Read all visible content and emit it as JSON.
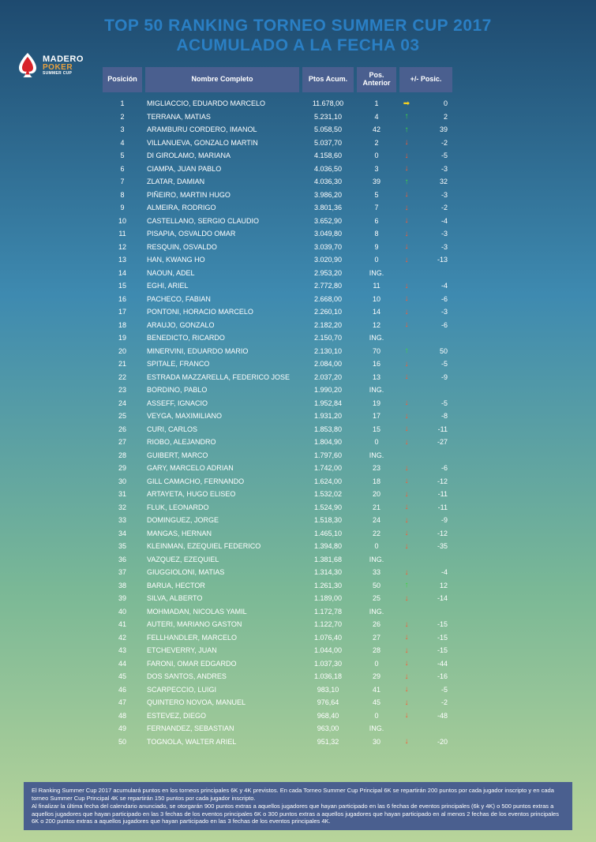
{
  "title_line1": "TOP 50 RANKING TORNEO SUMMER CUP 2017",
  "title_line2": "ACUMULADO A LA FECHA 03",
  "logo": {
    "madero": "MADERO",
    "poker": "POKER",
    "summer": "SUMMER CUP",
    "spade_color": "#d8232a",
    "spade_body": "#ffffff"
  },
  "headers": {
    "posicion": "Posición",
    "nombre": "Nombre Completo",
    "ptos": "Ptos Acum.",
    "anterior": "Pos. Anterior",
    "delta": "+/- Posic."
  },
  "colors": {
    "header_bg": "#4a5f8f",
    "text": "#ffffff",
    "title": "#2a7fc4",
    "up": "#3fd83f",
    "down": "#ff5830",
    "same": "#f5d020"
  },
  "rows": [
    {
      "pos": "1",
      "name": "MIGLIACCIO, EDUARDO MARCELO",
      "pts": "11.678,00",
      "prev": "1",
      "dir": "same",
      "delta": "0"
    },
    {
      "pos": "2",
      "name": "TERRANA, MATIAS",
      "pts": "5.231,10",
      "prev": "4",
      "dir": "up",
      "delta": "2"
    },
    {
      "pos": "3",
      "name": "ARAMBURU CORDERO, IMANOL",
      "pts": "5.058,50",
      "prev": "42",
      "dir": "up",
      "delta": "39"
    },
    {
      "pos": "4",
      "name": "VILLANUEVA, GONZALO MARTIN",
      "pts": "5.037,70",
      "prev": "2",
      "dir": "down",
      "delta": "-2"
    },
    {
      "pos": "5",
      "name": "DI GIROLAMO, MARIANA",
      "pts": "4.158,60",
      "prev": "0",
      "dir": "down",
      "delta": "-5"
    },
    {
      "pos": "6",
      "name": "CIAMPA, JUAN PABLO",
      "pts": "4.036,50",
      "prev": "3",
      "dir": "down",
      "delta": "-3"
    },
    {
      "pos": "7",
      "name": "ZLATAR, DAMIAN",
      "pts": "4.036,30",
      "prev": "39",
      "dir": "up",
      "delta": "32"
    },
    {
      "pos": "8",
      "name": "PIÑEIRO, MARTIN HUGO",
      "pts": "3.986,20",
      "prev": "5",
      "dir": "down",
      "delta": "-3"
    },
    {
      "pos": "9",
      "name": "ALMEIRA, RODRIGO",
      "pts": "3.801,36",
      "prev": "7",
      "dir": "down",
      "delta": "-2"
    },
    {
      "pos": "10",
      "name": "CASTELLANO, SERGIO CLAUDIO",
      "pts": "3.652,90",
      "prev": "6",
      "dir": "down",
      "delta": "-4"
    },
    {
      "pos": "11",
      "name": "PISAPIA, OSVALDO OMAR",
      "pts": "3.049,80",
      "prev": "8",
      "dir": "down",
      "delta": "-3"
    },
    {
      "pos": "12",
      "name": "RESQUIN, OSVALDO",
      "pts": "3.039,70",
      "prev": "9",
      "dir": "down",
      "delta": "-3"
    },
    {
      "pos": "13",
      "name": "HAN, KWANG HO",
      "pts": "3.020,90",
      "prev": "0",
      "dir": "down",
      "delta": "-13"
    },
    {
      "pos": "14",
      "name": "NAOUN, ADEL",
      "pts": "2.953,20",
      "prev": "ING.",
      "dir": "",
      "delta": ""
    },
    {
      "pos": "15",
      "name": "EGHI, ARIEL",
      "pts": "2.772,80",
      "prev": "11",
      "dir": "down",
      "delta": "-4"
    },
    {
      "pos": "16",
      "name": "PACHECO, FABIAN",
      "pts": "2.668,00",
      "prev": "10",
      "dir": "down",
      "delta": "-6"
    },
    {
      "pos": "17",
      "name": "PONTONI, HORACIO MARCELO",
      "pts": "2.260,10",
      "prev": "14",
      "dir": "down",
      "delta": "-3"
    },
    {
      "pos": "18",
      "name": "ARAUJO, GONZALO",
      "pts": "2.182,20",
      "prev": "12",
      "dir": "down",
      "delta": "-6"
    },
    {
      "pos": "19",
      "name": "BENEDICTO, RICARDO",
      "pts": "2.150,70",
      "prev": "ING.",
      "dir": "",
      "delta": ""
    },
    {
      "pos": "20",
      "name": "MINERVINI, EDUARDO MARIO",
      "pts": "2.130,10",
      "prev": "70",
      "dir": "up",
      "delta": "50"
    },
    {
      "pos": "21",
      "name": "SPITALE, FRANCO",
      "pts": "2.084,00",
      "prev": "16",
      "dir": "down",
      "delta": "-5"
    },
    {
      "pos": "22",
      "name": "ESTRADA MAZZARELLA, FEDERICO JOSE",
      "pts": "2.037,20",
      "prev": "13",
      "dir": "down",
      "delta": "-9"
    },
    {
      "pos": "23",
      "name": "BORDINO, PABLO",
      "pts": "1.990,20",
      "prev": "ING.",
      "dir": "",
      "delta": ""
    },
    {
      "pos": "24",
      "name": "ASSEFF, IGNACIO",
      "pts": "1.952,84",
      "prev": "19",
      "dir": "down",
      "delta": "-5"
    },
    {
      "pos": "25",
      "name": "VEYGA, MAXIMILIANO",
      "pts": "1.931,20",
      "prev": "17",
      "dir": "down",
      "delta": "-8"
    },
    {
      "pos": "26",
      "name": "CURI, CARLOS",
      "pts": "1.853,80",
      "prev": "15",
      "dir": "down",
      "delta": "-11"
    },
    {
      "pos": "27",
      "name": "RIOBO, ALEJANDRO",
      "pts": "1.804,90",
      "prev": "0",
      "dir": "down",
      "delta": "-27"
    },
    {
      "pos": "28",
      "name": "GUIBERT, MARCO",
      "pts": "1.797,60",
      "prev": "ING.",
      "dir": "",
      "delta": ""
    },
    {
      "pos": "29",
      "name": "GARY, MARCELO ADRIAN",
      "pts": "1.742,00",
      "prev": "23",
      "dir": "down",
      "delta": "-6"
    },
    {
      "pos": "30",
      "name": "GILL CAMACHO, FERNANDO",
      "pts": "1.624,00",
      "prev": "18",
      "dir": "down",
      "delta": "-12"
    },
    {
      "pos": "31",
      "name": "ARTAYETA, HUGO ELISEO",
      "pts": "1.532,02",
      "prev": "20",
      "dir": "down",
      "delta": "-11"
    },
    {
      "pos": "32",
      "name": "FLUK, LEONARDO",
      "pts": "1.524,90",
      "prev": "21",
      "dir": "down",
      "delta": "-11"
    },
    {
      "pos": "33",
      "name": "DOMINGUEZ, JORGE",
      "pts": "1.518,30",
      "prev": "24",
      "dir": "down",
      "delta": "-9"
    },
    {
      "pos": "34",
      "name": "MANGAS, HERNAN",
      "pts": "1.465,10",
      "prev": "22",
      "dir": "down",
      "delta": "-12"
    },
    {
      "pos": "35",
      "name": "KLEINMAN, EZEQUIEL FEDERICO",
      "pts": "1.394,80",
      "prev": "0",
      "dir": "down",
      "delta": "-35"
    },
    {
      "pos": "36",
      "name": "VAZQUEZ, EZEQUIEL",
      "pts": "1.381,68",
      "prev": "ING.",
      "dir": "",
      "delta": ""
    },
    {
      "pos": "37",
      "name": "GIUGGIOLONI, MATIAS",
      "pts": "1.314,30",
      "prev": "33",
      "dir": "down",
      "delta": "-4"
    },
    {
      "pos": "38",
      "name": "BARUA, HECTOR",
      "pts": "1.261,30",
      "prev": "50",
      "dir": "up",
      "delta": "12"
    },
    {
      "pos": "39",
      "name": "SILVA, ALBERTO",
      "pts": "1.189,00",
      "prev": "25",
      "dir": "down",
      "delta": "-14"
    },
    {
      "pos": "40",
      "name": "MOHMADAN, NICOLAS YAMIL",
      "pts": "1.172,78",
      "prev": "ING.",
      "dir": "",
      "delta": ""
    },
    {
      "pos": "41",
      "name": "AUTERI, MARIANO GASTON",
      "pts": "1.122,70",
      "prev": "26",
      "dir": "down",
      "delta": "-15"
    },
    {
      "pos": "42",
      "name": "FELLHANDLER, MARCELO",
      "pts": "1.076,40",
      "prev": "27",
      "dir": "down",
      "delta": "-15"
    },
    {
      "pos": "43",
      "name": "ETCHEVERRY, JUAN",
      "pts": "1.044,00",
      "prev": "28",
      "dir": "down",
      "delta": "-15"
    },
    {
      "pos": "44",
      "name": "FARONI, OMAR EDGARDO",
      "pts": "1.037,30",
      "prev": "0",
      "dir": "down",
      "delta": "-44"
    },
    {
      "pos": "45",
      "name": "DOS SANTOS, ANDRES",
      "pts": "1.036,18",
      "prev": "29",
      "dir": "down",
      "delta": "-16"
    },
    {
      "pos": "46",
      "name": "SCARPECCIO, LUIGI",
      "pts": "983,10",
      "prev": "41",
      "dir": "down",
      "delta": "-5"
    },
    {
      "pos": "47",
      "name": "QUINTERO NOVOA, MANUEL",
      "pts": "976,64",
      "prev": "45",
      "dir": "down",
      "delta": "-2"
    },
    {
      "pos": "48",
      "name": "ESTEVEZ, DIEGO",
      "pts": "968,40",
      "prev": "0",
      "dir": "down",
      "delta": "-48"
    },
    {
      "pos": "49",
      "name": "FERNANDEZ, SEBASTIAN",
      "pts": "963,00",
      "prev": "ING.",
      "dir": "",
      "delta": ""
    },
    {
      "pos": "50",
      "name": "TOGNOLA, WALTER ARIEL",
      "pts": "951,32",
      "prev": "30",
      "dir": "down",
      "delta": "-20"
    }
  ],
  "footer": "El Ranking Summer Cup 2017 acumulará puntos en los torneos principales 6K y 4K previstos. En cada Torneo Summer Cup Principal 6K se repartirán 200 puntos por cada jugador inscripto y en cada torneo Summer Cup Principal 4K se repartirán 150 puntos por cada jugador inscripto.\nAl finalizar la última fecha del calendario anunciado, se otorgarán 900 puntos extras a aquellos jugadores que hayan participado en las 6 fechas de eventos principales (6k y 4K) o 500 puntos extras a aquellos jugadores que hayan participado en las 3 fechas de los eventos principales 6K o 300 puntos extras a aquellos jugadores que hayan participado en al menos 2 fechas de los eventos principales 6K o 200 puntos extras a aquellos jugadores que hayan participado en las 3 fechas de los eventos principales 4K."
}
